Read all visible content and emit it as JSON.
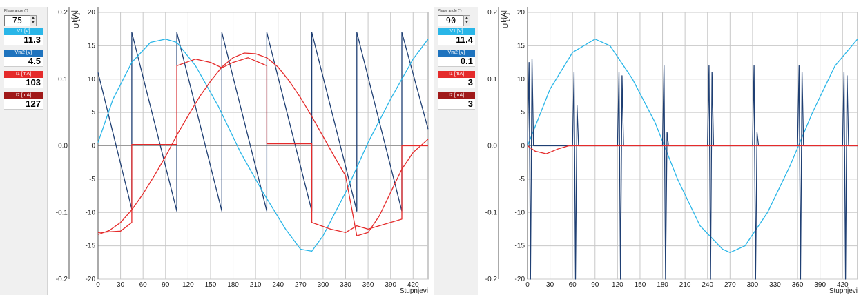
{
  "panels": [
    {
      "phase_label": "Phase angle (°)",
      "phase_value": "75",
      "meters": [
        {
          "label": "V1 [V]",
          "value": "11.3",
          "color": "#29b6e8"
        },
        {
          "label": "Vm2 [V]",
          "value": "4.5",
          "color": "#1e73be"
        },
        {
          "label": "I1 [mA]",
          "value": "103",
          "color": "#e52b2b"
        },
        {
          "label": "I2 [mA]",
          "value": "127",
          "color": "#a01919"
        }
      ]
    },
    {
      "phase_label": "Phase angle (°)",
      "phase_value": "90",
      "meters": [
        {
          "label": "V1 [V]",
          "value": "11.4",
          "color": "#29b6e8"
        },
        {
          "label": "Vm2 [V]",
          "value": "0.1",
          "color": "#1e73be"
        },
        {
          "label": "I1 [mA]",
          "value": "3",
          "color": "#e52b2b"
        },
        {
          "label": "I2 [mA]",
          "value": "3",
          "color": "#a01919"
        }
      ]
    }
  ],
  "chart_data": [
    {
      "type": "line",
      "xlabel": "Stupnjevi",
      "xlim": [
        0,
        440
      ],
      "x_ticks": [
        0,
        30,
        60,
        90,
        120,
        150,
        180,
        210,
        240,
        270,
        300,
        330,
        360,
        390,
        420
      ],
      "y_left_label": "I [A]",
      "y_left_lim": [
        -0.2,
        0.2
      ],
      "y_left_ticks": [
        "0.2",
        "0.1",
        "0.0",
        "-0.1",
        "-0.2"
      ],
      "y_right_label": "U [V]",
      "y_right_lim": [
        -20,
        20
      ],
      "y_right_ticks": [
        "20",
        "15",
        "10",
        "5",
        "0",
        "-5",
        "-10",
        "-15",
        "-20"
      ],
      "grid": true,
      "series": [
        {
          "color": "#1f3f73",
          "points": [
            [
              0,
              11
            ],
            [
              45,
              -9.5
            ],
            [
              45,
              17
            ],
            [
              105,
              -9.8
            ],
            [
              105,
              17
            ],
            [
              165,
              -9.8
            ],
            [
              165,
              17
            ],
            [
              225,
              -9.8
            ],
            [
              225,
              17
            ],
            [
              285,
              -9.8
            ],
            [
              285,
              17
            ],
            [
              345,
              -9.8
            ],
            [
              345,
              17
            ],
            [
              405,
              -9.8
            ],
            [
              405,
              17
            ],
            [
              440,
              2.5
            ]
          ]
        },
        {
          "color": "#29b6e8",
          "points": [
            [
              0,
              0.5
            ],
            [
              20,
              7
            ],
            [
              45,
              12.5
            ],
            [
              70,
              15.5
            ],
            [
              90,
              16
            ],
            [
              105,
              15.5
            ],
            [
              130,
              12
            ],
            [
              160,
              6
            ],
            [
              190,
              -1
            ],
            [
              220,
              -7
            ],
            [
              250,
              -12.5
            ],
            [
              270,
              -15.5
            ],
            [
              285,
              -15.8
            ],
            [
              300,
              -13.5
            ],
            [
              330,
              -7
            ],
            [
              360,
              0.5
            ],
            [
              390,
              7
            ],
            [
              420,
              13
            ],
            [
              440,
              16
            ]
          ]
        },
        {
          "color": "#e52b2b",
          "points": [
            [
              0,
              -13
            ],
            [
              30,
              -12.8
            ],
            [
              45,
              -11.5
            ],
            [
              45,
              0.2
            ],
            [
              105,
              0.2
            ],
            [
              105,
              12
            ],
            [
              130,
              13
            ],
            [
              150,
              12.5
            ],
            [
              165,
              11.7
            ],
            [
              180,
              12.5
            ],
            [
              200,
              13.2
            ],
            [
              225,
              12
            ],
            [
              225,
              0.3
            ],
            [
              285,
              0.3
            ],
            [
              285,
              -11.5
            ],
            [
              310,
              -12.5
            ],
            [
              330,
              -13
            ],
            [
              345,
              -12
            ],
            [
              360,
              -12.5
            ],
            [
              405,
              -11
            ],
            [
              405,
              0
            ],
            [
              440,
              0
            ]
          ]
        },
        {
          "color": "#e52b2b",
          "points": [
            [
              0,
              -13.3
            ],
            [
              15,
              -12.7
            ],
            [
              30,
              -11.5
            ],
            [
              45,
              -9.6
            ],
            [
              60,
              -7.2
            ],
            [
              75,
              -4.5
            ],
            [
              90,
              -1.6
            ],
            [
              105,
              1.6
            ],
            [
              120,
              4.5
            ],
            [
              135,
              7.3
            ],
            [
              150,
              9.7
            ],
            [
              165,
              11.8
            ],
            [
              180,
              13.2
            ],
            [
              195,
              13.9
            ],
            [
              210,
              13.8
            ],
            [
              225,
              13.2
            ],
            [
              240,
              11.8
            ],
            [
              255,
              9.7
            ],
            [
              270,
              7.2
            ],
            [
              285,
              4.4
            ],
            [
              300,
              1.4
            ],
            [
              315,
              -1.6
            ],
            [
              330,
              -4.5
            ],
            [
              345,
              -13.5
            ],
            [
              360,
              -13
            ],
            [
              375,
              -10.5
            ],
            [
              390,
              -7
            ],
            [
              405,
              -3.5
            ],
            [
              420,
              -1
            ],
            [
              440,
              1
            ]
          ]
        }
      ]
    },
    {
      "type": "line",
      "xlabel": "Stupnjevi",
      "xlim": [
        0,
        440
      ],
      "x_ticks": [
        0,
        30,
        60,
        90,
        120,
        150,
        180,
        210,
        240,
        270,
        300,
        330,
        360,
        390,
        420
      ],
      "y_left_label": "I [A]",
      "y_left_lim": [
        -0.2,
        0.2
      ],
      "y_left_ticks": [
        "0.2",
        "0.1",
        "0.0",
        "-0.1",
        "-0.2"
      ],
      "y_right_label": "U [V]",
      "y_right_lim": [
        -20,
        20
      ],
      "y_right_ticks": [
        "20",
        "15",
        "10",
        "5",
        "0",
        "-5",
        "-10",
        "-15",
        "-20"
      ],
      "grid": true,
      "series": [
        {
          "color": "#29b6e8",
          "points": [
            [
              0,
              0
            ],
            [
              30,
              8.5
            ],
            [
              60,
              14
            ],
            [
              90,
              16
            ],
            [
              110,
              15
            ],
            [
              140,
              10
            ],
            [
              170,
              3.5
            ],
            [
              200,
              -5
            ],
            [
              230,
              -12
            ],
            [
              260,
              -15.5
            ],
            [
              270,
              -16
            ],
            [
              290,
              -15
            ],
            [
              320,
              -10
            ],
            [
              350,
              -3
            ],
            [
              380,
              5
            ],
            [
              410,
              12
            ],
            [
              440,
              16
            ]
          ]
        },
        {
          "color": "#1f3f73",
          "points": [
            [
              0,
              0
            ],
            [
              2,
              12.5
            ],
            [
              4,
              -20
            ],
            [
              6,
              13
            ],
            [
              8,
              0
            ],
            [
              60,
              0
            ],
            [
              62,
              11
            ],
            [
              64,
              -20
            ],
            [
              66,
              6
            ],
            [
              68,
              0
            ],
            [
              120,
              0
            ],
            [
              122,
              11
            ],
            [
              124,
              -20
            ],
            [
              126,
              10.5
            ],
            [
              128,
              0
            ],
            [
              180,
              0
            ],
            [
              182,
              12
            ],
            [
              184,
              -20
            ],
            [
              186,
              2
            ],
            [
              188,
              0
            ],
            [
              240,
              0
            ],
            [
              242,
              12
            ],
            [
              244,
              -20
            ],
            [
              246,
              11
            ],
            [
              248,
              0
            ],
            [
              300,
              0
            ],
            [
              302,
              12
            ],
            [
              304,
              -20
            ],
            [
              306,
              2
            ],
            [
              308,
              0
            ],
            [
              360,
              0
            ],
            [
              362,
              12
            ],
            [
              364,
              -20
            ],
            [
              366,
              11
            ],
            [
              368,
              0
            ],
            [
              420,
              0
            ],
            [
              422,
              11
            ],
            [
              424,
              -20
            ],
            [
              426,
              10.5
            ],
            [
              428,
              0
            ],
            [
              440,
              0
            ]
          ]
        },
        {
          "color": "#e52b2b",
          "points": [
            [
              0,
              0
            ],
            [
              10,
              -0.8
            ],
            [
              25,
              -1.2
            ],
            [
              40,
              -0.5
            ],
            [
              55,
              0
            ],
            [
              440,
              0
            ]
          ]
        }
      ]
    }
  ]
}
